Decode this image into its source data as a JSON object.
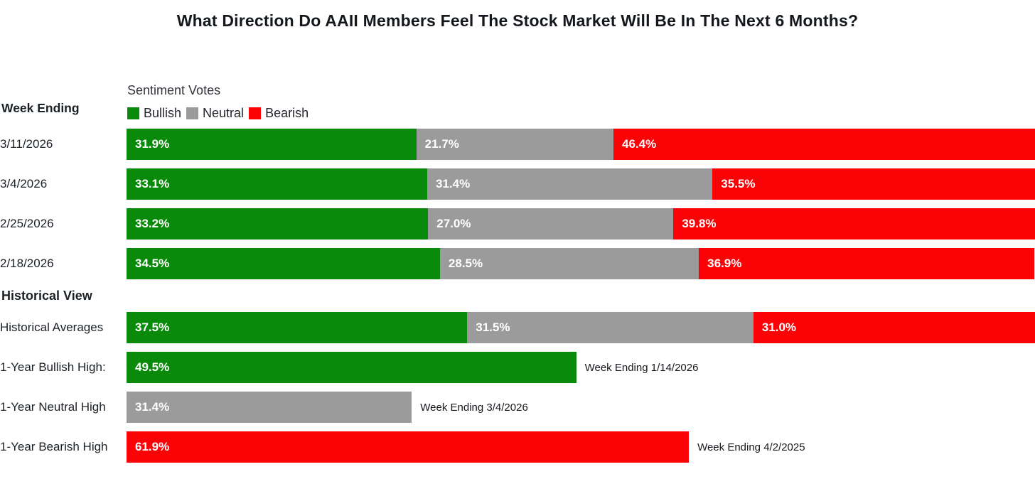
{
  "title": "What Direction Do AAII Members Feel The Stock Market Will Be In The Next 6 Months?",
  "labels": {
    "week_ending": "Week Ending",
    "historical_view": "Historical View"
  },
  "legend": {
    "title": "Sentiment Votes",
    "items": [
      {
        "label": "Bullish",
        "color": "#0a8a0a"
      },
      {
        "label": "Neutral",
        "color": "#9b9b9b"
      },
      {
        "label": "Bearish",
        "color": "#fb0207"
      }
    ]
  },
  "colors": {
    "bullish": "#0a8a0a",
    "neutral": "#9b9b9b",
    "bearish": "#fb0207",
    "title_text": "#14181d",
    "bar_value_text": "#ffffff"
  },
  "chart_data": {
    "type": "bar",
    "orientation": "horizontal",
    "stacked": true,
    "value_suffix": "%",
    "xlim": [
      0,
      100
    ],
    "weekly": {
      "categories": [
        "3/11/2026",
        "3/4/2026",
        "2/25/2026",
        "2/18/2026"
      ],
      "series": [
        {
          "name": "Bullish",
          "values": [
            31.9,
            33.1,
            33.2,
            34.5
          ]
        },
        {
          "name": "Neutral",
          "values": [
            21.7,
            31.4,
            27.0,
            28.5
          ]
        },
        {
          "name": "Bearish",
          "values": [
            46.4,
            35.5,
            39.8,
            36.9
          ]
        }
      ]
    },
    "historical": {
      "averages": {
        "label": "Historical Averages",
        "series": [
          {
            "name": "Bullish",
            "value": 37.5
          },
          {
            "name": "Neutral",
            "value": 31.5
          },
          {
            "name": "Bearish",
            "value": 31.0
          }
        ]
      },
      "extremes": [
        {
          "label": "1-Year Bullish High:",
          "name": "Bullish",
          "value": 49.5,
          "annotation": "Week Ending 1/14/2026"
        },
        {
          "label": "1-Year Neutral High",
          "name": "Neutral",
          "value": 31.4,
          "annotation": "Week Ending 3/4/2026"
        },
        {
          "label": "1-Year Bearish High",
          "name": "Bearish",
          "value": 61.9,
          "annotation": "Week Ending 4/2/2025"
        }
      ]
    }
  }
}
